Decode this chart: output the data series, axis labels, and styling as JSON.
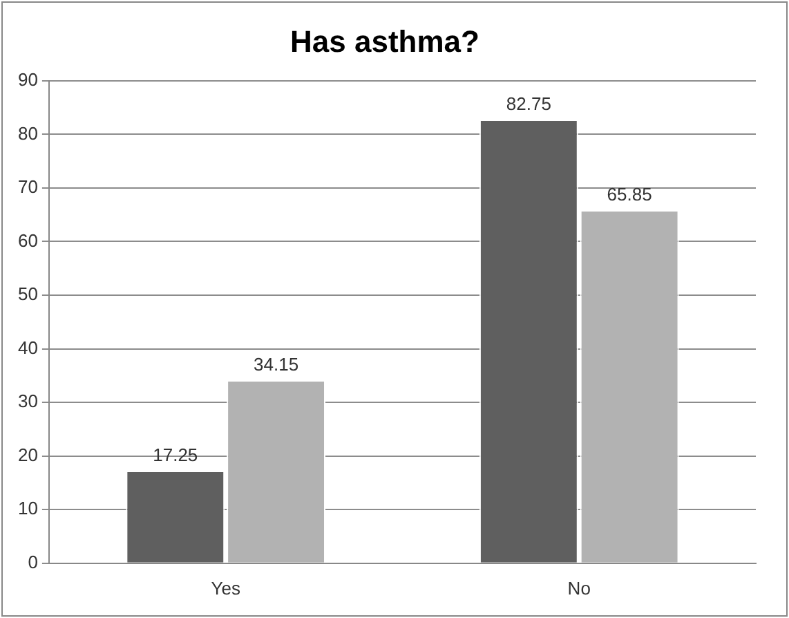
{
  "chart_data": {
    "type": "bar",
    "title": "Has asthma?",
    "categories": [
      "Yes",
      "No"
    ],
    "series": [
      {
        "color": "#5f5f5f",
        "values": [
          17.25,
          82.75
        ]
      },
      {
        "color": "#b2b2b2",
        "values": [
          34.15,
          65.85
        ]
      }
    ],
    "ylim": [
      0,
      90
    ],
    "yticks": [
      0,
      10,
      20,
      30,
      40,
      50,
      60,
      70,
      80,
      90
    ],
    "grid": "y",
    "legend": false,
    "data_labels": true
  }
}
